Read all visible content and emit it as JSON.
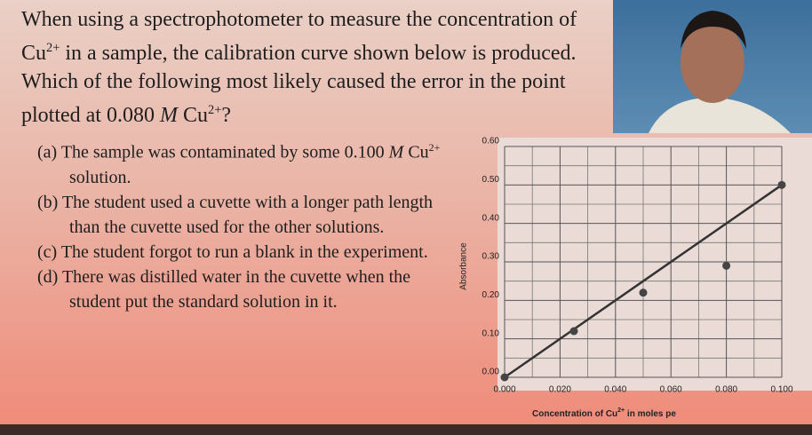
{
  "question": {
    "text_1": "When using a spectrophotometer to measure the concentration of Cu",
    "sup_1": "2+",
    "text_2": " in a sample, the calibration curve shown below is produced. Which of the following most likely caused the error in the point plotted at 0.080 ",
    "italic_1": "M",
    "text_3": " Cu",
    "sup_2": "2+",
    "text_4": "?"
  },
  "options": [
    {
      "text_1": "(a) The sample was contaminated by some 0.100 ",
      "italic_1": "M",
      "text_2": " Cu",
      "sup_1": "2+",
      "text_3": " solution."
    },
    {
      "text_1": "(b) The student used a cuvette with a longer path length than the cuvette used for the other solutions."
    },
    {
      "text_1": "(c) The student forgot to run a blank in the experiment."
    },
    {
      "text_1": "(d) There was distilled water in the cuvette when the student put the standard solution in it."
    }
  ],
  "chart_data": {
    "type": "scatter",
    "y_label": "Absorbance",
    "x_label_1": "Concentration of Cu",
    "x_label_sup": "2+",
    "x_label_2": " in moles pe",
    "x": [
      0,
      0.025,
      0.05,
      0.08,
      0.1
    ],
    "values": [
      0,
      0.12,
      0.22,
      0.29,
      0.5
    ],
    "color": "#444444",
    "fit_line": {
      "x": [
        0,
        0.1
      ],
      "values": [
        0,
        0.5
      ],
      "color": "#333333"
    },
    "xlim": [
      0,
      0.1
    ],
    "ylim": [
      0,
      0.6
    ],
    "xticks": [
      {
        "value": 0,
        "label": "0.000"
      },
      {
        "value": 0.02,
        "label": "0.020"
      },
      {
        "value": 0.04,
        "label": "0.040"
      },
      {
        "value": 0.06,
        "label": "0.060"
      },
      {
        "value": 0.08,
        "label": "0.080"
      },
      {
        "value": 0.1,
        "label": "0.100"
      }
    ],
    "yticks": [
      {
        "value": 0,
        "label": "0.00"
      },
      {
        "value": 0.1,
        "label": "0.10"
      },
      {
        "value": 0.2,
        "label": "0.20"
      },
      {
        "value": 0.3,
        "label": "0.30"
      },
      {
        "value": 0.4,
        "label": "0.40"
      },
      {
        "value": 0.5,
        "label": "0.50"
      },
      {
        "value": 0.6,
        "label": "0.60"
      }
    ],
    "grid": true
  }
}
